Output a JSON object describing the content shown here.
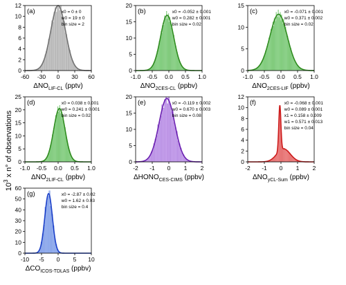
{
  "ylabel_main": "10",
  "ylabel_exp": "3",
  "ylabel_rest": " x n° of observations",
  "chart_data": [
    {
      "type": "bar",
      "label": "(a)",
      "xlabel_main": "ΔNO",
      "xlabel_sub": "LIF-CL",
      "xlabel_unit": " (pptv)",
      "xlim": [
        -60,
        60
      ],
      "ylim": [
        0,
        12
      ],
      "xticks": [
        -60,
        -30,
        0,
        30,
        60
      ],
      "yticks": [
        0,
        2,
        4,
        6,
        8,
        10,
        12
      ],
      "bar_color": "#c8c8c8",
      "line_color": "#707070",
      "stats": [
        "x0 = 0 ± 0",
        "w0 = 19 ± 0",
        "bin size = 2"
      ],
      "fit": {
        "kind": "gauss",
        "x0": 0,
        "w": 19,
        "amp": 12
      },
      "bins": {
        "start": -52,
        "end": 52,
        "width": 2
      }
    },
    {
      "type": "bar",
      "label": "(b)",
      "xlabel_main": "ΔNO",
      "xlabel_sub": "2CES-CL",
      "xlabel_unit": " (ppbv)",
      "xlim": [
        -1,
        1
      ],
      "ylim": [
        0,
        20
      ],
      "xticks": [
        -1.0,
        -0.5,
        0.0,
        0.5,
        1.0
      ],
      "yticks": [
        0,
        5,
        10,
        15,
        20
      ],
      "bar_color": "#9be09b",
      "line_color": "#2e8b1e",
      "stats": [
        "x0 = -0.052 ± 0.001",
        "w0 = 0.282 ± 0.001",
        "bin size = 0.02"
      ],
      "fit": {
        "kind": "gauss",
        "x0": -0.052,
        "w": 0.282,
        "amp": 17
      },
      "bins": {
        "start": -0.9,
        "end": 0.8,
        "width": 0.02
      }
    },
    {
      "type": "bar",
      "label": "(c)",
      "xlabel_main": "ΔNO",
      "xlabel_sub": "2CES-LIF",
      "xlabel_unit": " (ppbv)",
      "xlim": [
        -1,
        1
      ],
      "ylim": [
        0,
        15
      ],
      "xticks": [
        -1.0,
        -0.5,
        0.0,
        0.5,
        1.0
      ],
      "yticks": [
        0,
        5,
        10,
        15
      ],
      "bar_color": "#9be09b",
      "line_color": "#2e8b1e",
      "stats": [
        "x0 = -0.071 ± 0.001",
        "w0 = 0.371 ± 0.002",
        "bin size = 0.02"
      ],
      "fit": {
        "kind": "gauss",
        "x0": -0.071,
        "w": 0.371,
        "amp": 13
      },
      "bins": {
        "start": -0.95,
        "end": 0.85,
        "width": 0.02
      }
    },
    {
      "type": "bar",
      "label": "(d)",
      "xlabel_main": "ΔNO",
      "xlabel_sub": "2LIF-CL",
      "xlabel_unit": " (ppbv)",
      "xlim": [
        -1,
        1
      ],
      "ylim": [
        0,
        25
      ],
      "xticks": [
        -1.0,
        -0.5,
        0.0,
        0.5,
        1.0
      ],
      "yticks": [
        0,
        5,
        10,
        15,
        20,
        25
      ],
      "bar_color": "#9be09b",
      "line_color": "#2e8b1e",
      "stats": [
        "x0 = 0.038 ± 0.001",
        "w0 = 0.241 ± 0.001",
        "bin size = 0.02"
      ],
      "fit": {
        "kind": "gauss",
        "x0": 0.038,
        "w": 0.241,
        "amp": 20.5
      },
      "bins": {
        "start": -0.7,
        "end": 0.8,
        "width": 0.02
      }
    },
    {
      "type": "bar",
      "label": "(e)",
      "xlabel_main": "ΔHONO",
      "xlabel_sub": "CES-CIMS",
      "xlabel_unit": " (ppbv)",
      "xlim": [
        -2,
        2
      ],
      "ylim": [
        0,
        20
      ],
      "xticks": [
        -2,
        -1,
        0,
        1,
        2
      ],
      "yticks": [
        0,
        5,
        10,
        15,
        20
      ],
      "bar_color": "#c9a6ee",
      "line_color": "#6a1fb0",
      "stats": [
        "x0 = -0.119 ± 0.002",
        "w0 = 0.670 ± 0.003",
        "bin size = 0.08"
      ],
      "fit": {
        "kind": "gauss",
        "x0": -0.119,
        "w": 0.67,
        "amp": 19.5
      },
      "bins": {
        "start": -1.8,
        "end": 1.6,
        "width": 0.08
      }
    },
    {
      "type": "bar",
      "label": "(f)",
      "xlabel_main": "ΔNO",
      "xlabel_sub": "yCL-Sum",
      "xlabel_unit": " (ppbv)",
      "xlim": [
        -2,
        2
      ],
      "ylim": [
        0,
        12
      ],
      "xticks": [
        -2,
        -1,
        0,
        1,
        2
      ],
      "yticks": [
        0,
        2,
        4,
        6,
        8,
        10,
        12
      ],
      "bar_color": "#f09090",
      "line_color": "#cc1a1a",
      "stats": [
        "x0 = -0.068 ± 0.001",
        "w0 = 0.089 ± 0.001",
        "x1 = 0.158 ± 0.009",
        "w1 = 0.571 ± 0.013",
        "bin size = 0.04"
      ],
      "fit": {
        "kind": "dgauss",
        "x0": -0.068,
        "w": 0.089,
        "amp": 8.4,
        "x1": 0.158,
        "w1": 0.571,
        "amp1": 2.4
      },
      "bins": {
        "start": -1.0,
        "end": 1.2,
        "width": 0.04
      }
    },
    {
      "type": "bar",
      "label": "(g)",
      "xlabel_main": "ΔCO",
      "xlabel_sub": "ICOS-TDLAS",
      "xlabel_unit": " (ppbv)",
      "xlim": [
        -10,
        10
      ],
      "ylim": [
        0,
        60
      ],
      "xticks": [
        -10,
        -5,
        0,
        5,
        10
      ],
      "yticks": [
        0,
        10,
        20,
        30,
        40,
        50,
        60
      ],
      "bar_color": "#9cb6f0",
      "line_color": "#1a3fc8",
      "stats": [
        "x0 = -2.87 ± 0.02",
        "w0 = 1.62 ± 0.03",
        "bin size = 0.4"
      ],
      "fit": {
        "kind": "gauss",
        "x0": -2.87,
        "w": 1.62,
        "amp": 55
      },
      "bins": {
        "start": -6.8,
        "end": 0.8,
        "width": 0.4
      }
    }
  ]
}
